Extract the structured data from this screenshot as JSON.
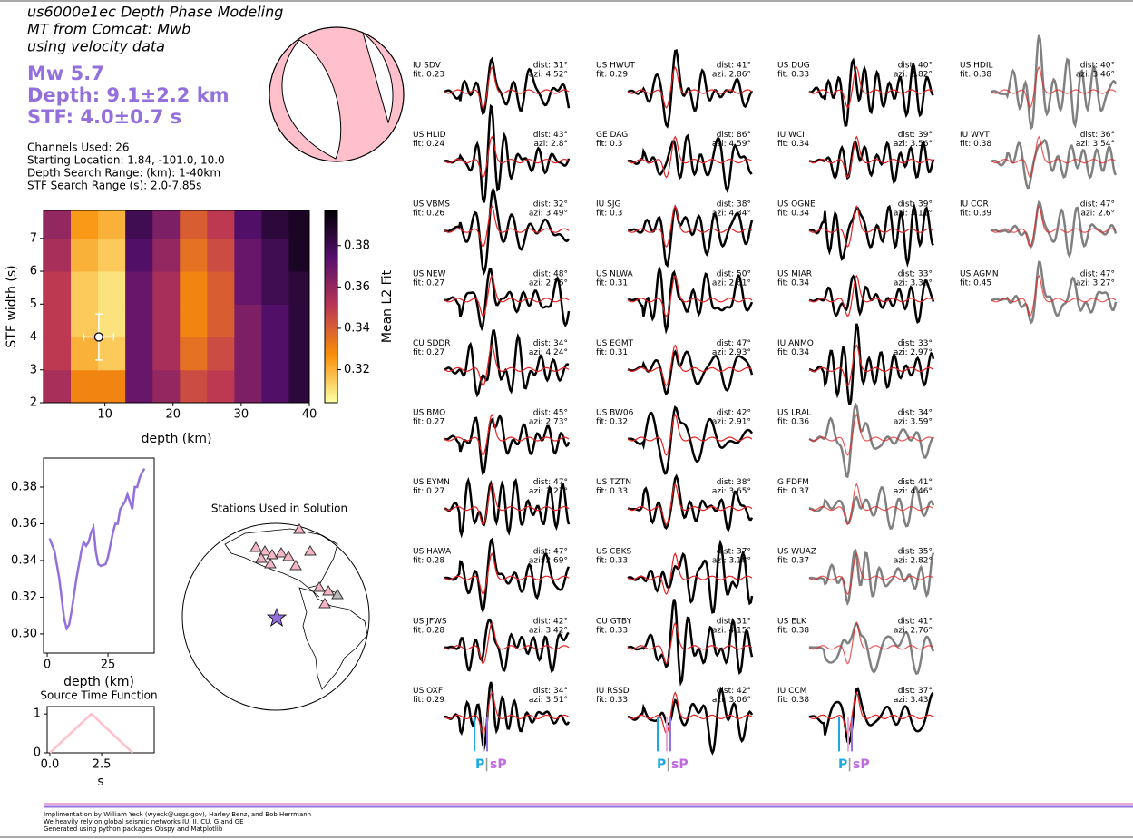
{
  "header": {
    "title_lines": [
      "us6000e1ec Depth Phase Modeling",
      "MT from Comcat: Mwb",
      "using velocity data"
    ],
    "summary": [
      "Mw 5.7",
      "Depth: 9.1±2.2 km",
      "STF: 4.0±0.7 s"
    ],
    "info": [
      "Channels Used: 26",
      "Starting Location: 1.84, -101.0, 10.0",
      "Depth Search Range: (km): 1-40km",
      "STF Search Range (s): 2.0-7.85s"
    ]
  },
  "chart_data": [
    {
      "type": "heatmap",
      "xlabel": "depth (km)",
      "ylabel": "STF width (s)",
      "colorbar_label": "Mean L2 Fit",
      "x": [
        3,
        7,
        11,
        15,
        19,
        23,
        27,
        31,
        35,
        39
      ],
      "y": [
        2.5,
        3.5,
        4.5,
        5.5,
        6.5,
        7.5
      ],
      "values": [
        [
          0.355,
          0.33,
          0.33,
          0.37,
          0.36,
          0.345,
          0.35,
          0.365,
          0.375,
          0.385
        ],
        [
          0.35,
          0.32,
          0.315,
          0.37,
          0.355,
          0.335,
          0.345,
          0.365,
          0.375,
          0.385
        ],
        [
          0.35,
          0.315,
          0.31,
          0.37,
          0.355,
          0.33,
          0.34,
          0.365,
          0.375,
          0.385
        ],
        [
          0.35,
          0.315,
          0.31,
          0.37,
          0.355,
          0.33,
          0.34,
          0.37,
          0.38,
          0.385
        ],
        [
          0.355,
          0.32,
          0.315,
          0.375,
          0.36,
          0.335,
          0.345,
          0.37,
          0.38,
          0.39
        ],
        [
          0.36,
          0.325,
          0.32,
          0.38,
          0.365,
          0.34,
          0.35,
          0.375,
          0.385,
          0.39
        ]
      ],
      "xlim": [
        1,
        40
      ],
      "xticks": [
        10,
        20,
        30,
        40
      ],
      "ylim": [
        2,
        7.85
      ],
      "yticks": [
        2,
        3,
        4,
        5,
        6,
        7
      ],
      "clim": [
        0.304,
        0.397
      ],
      "cticks": [
        0.32,
        0.34,
        0.36,
        0.38
      ],
      "best": {
        "x": 9.1,
        "y": 4.0,
        "xerr": 2.2,
        "yerr": 0.7
      }
    },
    {
      "type": "line",
      "xlabel": "depth (km)",
      "color": "#9370db",
      "x": [
        1,
        3,
        5,
        7,
        8,
        9,
        10,
        12,
        14,
        15,
        16,
        17,
        18,
        19,
        20,
        21,
        22,
        24,
        25,
        27,
        28,
        29,
        30,
        32,
        33,
        34,
        35,
        36,
        37,
        38,
        39,
        40
      ],
      "y": [
        0.352,
        0.345,
        0.33,
        0.308,
        0.303,
        0.305,
        0.312,
        0.33,
        0.345,
        0.35,
        0.348,
        0.35,
        0.355,
        0.358,
        0.345,
        0.338,
        0.337,
        0.338,
        0.342,
        0.355,
        0.36,
        0.36,
        0.368,
        0.372,
        0.376,
        0.372,
        0.368,
        0.38,
        0.38,
        0.385,
        0.388,
        0.39
      ],
      "xlim": [
        -1.5,
        44
      ],
      "xticks": [
        0,
        25
      ],
      "ylim": [
        0.2896,
        0.3958
      ],
      "yticks": [
        {
          "value": 0.3,
          "label": "0.30"
        },
        0.32,
        0.34,
        0.36,
        0.38
      ]
    },
    {
      "type": "line",
      "title": "Source Time Function",
      "xlabel": "s",
      "color": "#ffc0cb",
      "x": [
        0,
        2,
        4
      ],
      "y": [
        0,
        1,
        0
      ],
      "xlim": [
        -0.13,
        5.04
      ],
      "xticks": [
        {
          "value": 0,
          "label": "0.0"
        },
        2.5
      ],
      "ylim": [
        0,
        1.19
      ],
      "yticks": [
        0,
        1
      ]
    },
    {
      "type": "map",
      "title": "Stations Used in Solution"
    }
  ],
  "stations": [
    [
      {
        "name": "IU SDV",
        "fit": "fit: 0.23",
        "dist": "dist: 31°",
        "azi": "azi: 4.52°",
        "trace_color": "#000000"
      },
      {
        "name": "US HLID",
        "fit": "fit: 0.24",
        "dist": "dist: 43°",
        "azi": "azi: 2.8°",
        "trace_color": "#000000"
      },
      {
        "name": "US VBMS",
        "fit": "fit: 0.26",
        "dist": "dist: 32°",
        "azi": "azi: 3.49°",
        "trace_color": "#000000"
      },
      {
        "name": "US NEW",
        "fit": "fit: 0.27",
        "dist": "dist: 48°",
        "azi": "azi: 2.76°",
        "trace_color": "#000000"
      },
      {
        "name": "CU SDDR",
        "fit": "fit: 0.27",
        "dist": "dist: 34°",
        "azi": "azi: 4.24°",
        "trace_color": "#000000"
      },
      {
        "name": "US BMO",
        "fit": "fit: 0.27",
        "dist": "dist: 45°",
        "azi": "azi: 2.73°",
        "trace_color": "#000000"
      },
      {
        "name": "US EYMN",
        "fit": "fit: 0.27",
        "dist": "dist: 47°",
        "azi": "azi: 3.27°",
        "trace_color": "#000000"
      },
      {
        "name": "US HAWA",
        "fit": "fit: 0.28",
        "dist": "dist: 47°",
        "azi": "azi: 2.69°",
        "trace_color": "#000000"
      },
      {
        "name": "US JFWS",
        "fit": "fit: 0.28",
        "dist": "dist: 42°",
        "azi": "azi: 3.42°",
        "trace_color": "#000000"
      },
      {
        "name": "US OXF",
        "fit": "fit: 0.29",
        "dist": "dist: 34°",
        "azi": "azi: 3.51°",
        "trace_color": "#000000"
      }
    ],
    [
      {
        "name": "US HWUT",
        "fit": "fit: 0.29",
        "dist": "dist: 41°",
        "azi": "azi: 2.86°",
        "trace_color": "#000000"
      },
      {
        "name": "GE DAG",
        "fit": "fit: 0.3",
        "dist": "dist: 86°",
        "azi": "azi: 4.59°",
        "trace_color": "#000000"
      },
      {
        "name": "IU SJG",
        "fit": "fit: 0.3",
        "dist": "dist: 38°",
        "azi": "azi: 4.34°",
        "trace_color": "#000000"
      },
      {
        "name": "US NLWA",
        "fit": "fit: 0.31",
        "dist": "dist: 50°",
        "azi": "azi: 2.61°",
        "trace_color": "#000000"
      },
      {
        "name": "US EGMT",
        "fit": "fit: 0.31",
        "dist": "dist: 47°",
        "azi": "azi: 2.93°",
        "trace_color": "#000000"
      },
      {
        "name": "US BW06",
        "fit": "fit: 0.32",
        "dist": "dist: 42°",
        "azi": "azi: 2.91°",
        "trace_color": "#000000"
      },
      {
        "name": "US TZTN",
        "fit": "fit: 0.33",
        "dist": "dist: 38°",
        "azi": "azi: 3.65°",
        "trace_color": "#000000"
      },
      {
        "name": "US CBKS",
        "fit": "fit: 0.33",
        "dist": "dist: 37°",
        "azi": "azi: 3.18°",
        "trace_color": "#000000"
      },
      {
        "name": "CU GTBY",
        "fit": "fit: 0.33",
        "dist": "dist: 31°",
        "azi": "azi: 4.15°",
        "trace_color": "#000000"
      },
      {
        "name": "IU RSSD",
        "fit": "fit: 0.33",
        "dist": "dist: 42°",
        "azi": "azi: 3.06°",
        "trace_color": "#000000"
      }
    ],
    [
      {
        "name": "US DUG",
        "fit": "fit: 0.33",
        "dist": "dist: 40°",
        "azi": "azi: 2.82°",
        "trace_color": "#000000"
      },
      {
        "name": "IU WCI",
        "fit": "fit: 0.34",
        "dist": "dist: 39°",
        "azi": "azi: 3.56°",
        "trace_color": "#000000"
      },
      {
        "name": "US OGNE",
        "fit": "fit: 0.34",
        "dist": "dist: 39°",
        "azi": "azi: 3.11°",
        "trace_color": "#000000"
      },
      {
        "name": "US MIAR",
        "fit": "fit: 0.34",
        "dist": "dist: 33°",
        "azi": "azi: 3.38°",
        "trace_color": "#000000"
      },
      {
        "name": "IU ANMO",
        "fit": "fit: 0.34",
        "dist": "dist: 33°",
        "azi": "azi: 2.97°",
        "trace_color": "#000000"
      },
      {
        "name": "US LRAL",
        "fit": "fit: 0.36",
        "dist": "dist: 34°",
        "azi": "azi: 3.59°",
        "trace_color": "#808080"
      },
      {
        "name": "G FDFM",
        "fit": "fit: 0.37",
        "dist": "dist: 41°",
        "azi": "azi: 4.46°",
        "trace_color": "#808080"
      },
      {
        "name": "US WUAZ",
        "fit": "fit: 0.37",
        "dist": "dist: 35°",
        "azi": "azi: 2.82°",
        "trace_color": "#808080"
      },
      {
        "name": "US ELK",
        "fit": "fit: 0.38",
        "dist": "dist: 41°",
        "azi": "azi: 2.76°",
        "trace_color": "#808080"
      },
      {
        "name": "IU CCM",
        "fit": "fit: 0.38",
        "dist": "dist: 37°",
        "azi": "azi: 3.43°",
        "trace_color": "#000000"
      }
    ],
    [
      {
        "name": "US HDIL",
        "fit": "fit: 0.38",
        "dist": "dist: 40°",
        "azi": "azi: 3.46°",
        "trace_color": "#808080"
      },
      {
        "name": "IU WVT",
        "fit": "fit: 0.38",
        "dist": "dist: 36°",
        "azi": "azi: 3.54°",
        "trace_color": "#808080"
      },
      {
        "name": "IU COR",
        "fit": "fit: 0.39",
        "dist": "dist: 47°",
        "azi": "azi: 2.6°",
        "trace_color": "#808080"
      },
      {
        "name": "US AGMN",
        "fit": "fit: 0.45",
        "dist": "dist: 47°",
        "azi": "azi: 3.27°",
        "trace_color": "#808080"
      }
    ]
  ],
  "phase_labels": {
    "p": "P",
    "sep": "|",
    "sp": "sP"
  },
  "footer": [
    "Implimentation by William Yeck (wyeck@usgs.gov), Harley Benz, and Bob Herrmann",
    "We heavily rely on global seismic networks IU, II, CU, G and GE",
    "Generated using python packages Obspy and Matplotlib"
  ]
}
